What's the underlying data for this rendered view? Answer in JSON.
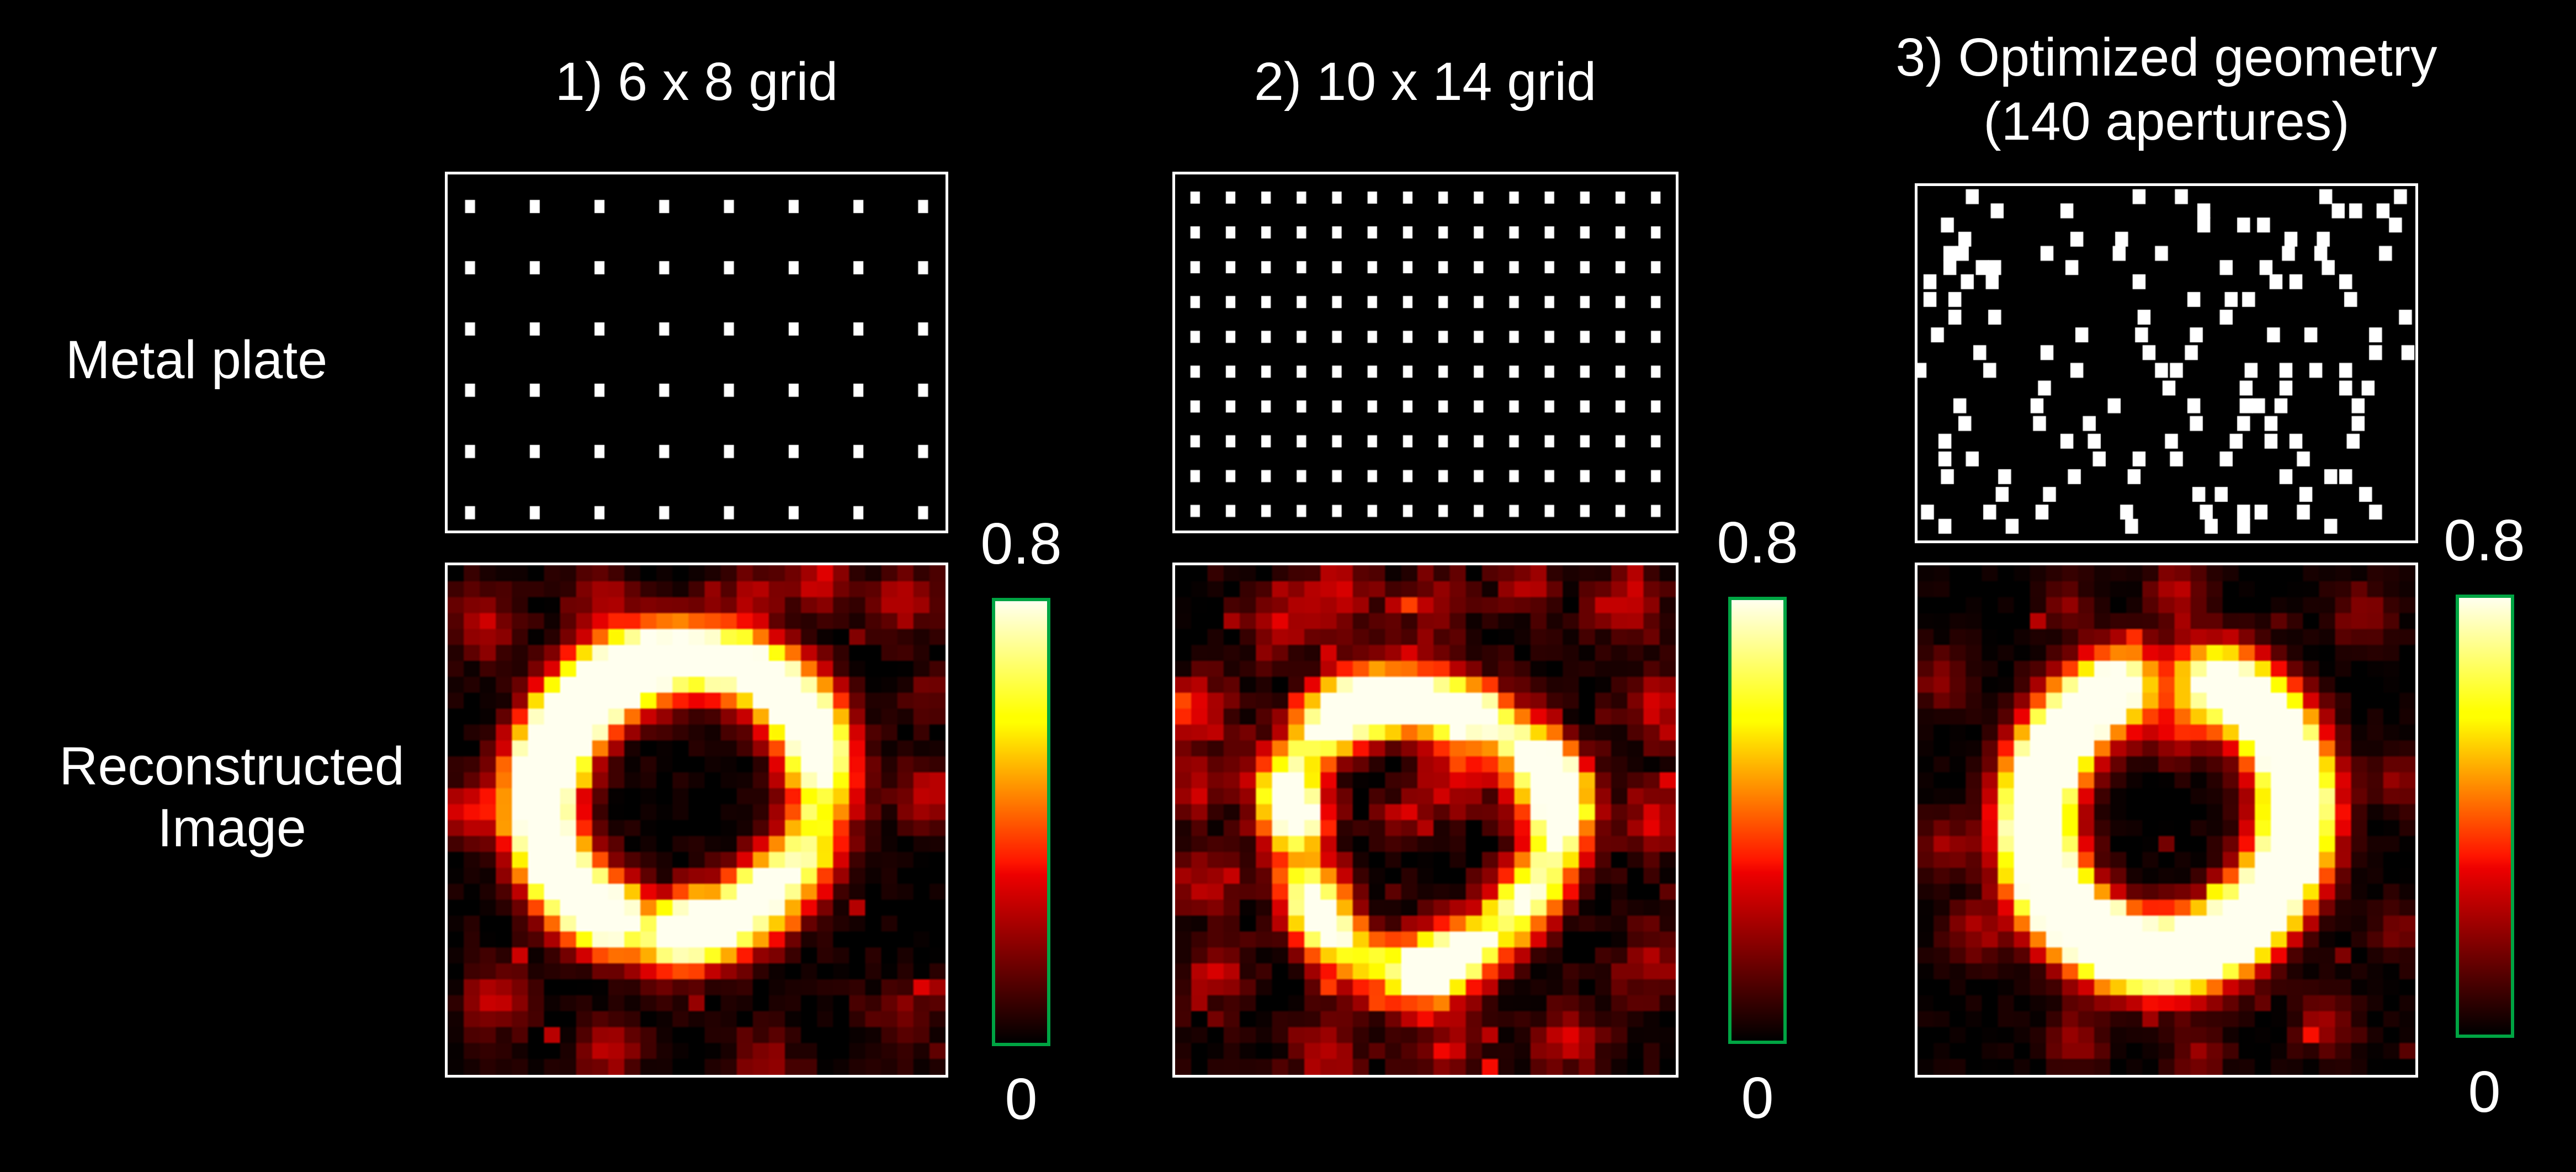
{
  "background": "#000000",
  "text_color": "#FFFFFF",
  "labels": {
    "metal_plate": "Metal plate",
    "reconstructed_line1": "Reconstructed",
    "reconstructed_line2": "Image"
  },
  "columns": [
    {
      "title_lines": [
        "1) 6 x 8 grid"
      ]
    },
    {
      "title_lines": [
        "2) 10 x 14 grid"
      ]
    },
    {
      "title_lines": [
        "3) Optimized geometry",
        "(140 apertures)"
      ]
    }
  ],
  "colorbar": {
    "max_label": "0.8",
    "min_label": "0",
    "range": [
      0,
      0.8
    ],
    "border_color": "#00A443",
    "colormap": "hot"
  },
  "chart_data": {
    "type": "heatmap",
    "value_range": [
      0,
      0.8
    ],
    "colormap": "hot",
    "panels": [
      {
        "name": "6 x 8 grid",
        "plate": {
          "kind": "grid",
          "rows": 6,
          "cols": 8,
          "x0": 0.045,
          "x1": 0.955,
          "y0": 0.09,
          "y1": 0.95,
          "hw": 0.02,
          "hh": 0.037
        },
        "recon": {
          "cx": 0.47,
          "cy": 0.45,
          "r0": 0.275,
          "sigma": 0.052,
          "amp": 1.5,
          "base": 1.0,
          "harm": [
            [
              1,
              0.18,
              2.8
            ],
            [
              3,
              0.15,
              0.9
            ]
          ],
          "notch": [
            [
              0.1,
              0.22,
              0.45
            ],
            [
              1.85,
              0.15,
              0.5
            ]
          ],
          "wobble": [
            0.012,
            2,
            1.0
          ],
          "noise": 0.11,
          "speckle": 0.035,
          "seed": 7,
          "blobs": [
            [
              0.07,
              0.12,
              0.05,
              0.3
            ],
            [
              0.3,
              0.06,
              0.05,
              0.25
            ],
            [
              0.62,
              0.05,
              0.04,
              0.22
            ],
            [
              0.92,
              0.07,
              0.05,
              0.28
            ],
            [
              0.04,
              0.48,
              0.04,
              0.35
            ],
            [
              0.96,
              0.45,
              0.045,
              0.33
            ],
            [
              0.1,
              0.85,
              0.05,
              0.3
            ],
            [
              0.33,
              0.95,
              0.05,
              0.28
            ],
            [
              0.63,
              0.97,
              0.045,
              0.25
            ],
            [
              0.92,
              0.88,
              0.05,
              0.22
            ],
            [
              0.97,
              0.25,
              0.04,
              0.2
            ],
            [
              0.75,
              0.03,
              0.04,
              0.33
            ],
            [
              0.62,
              0.62,
              0.035,
              0.3
            ]
          ]
        }
      },
      {
        "name": "10 x 14 grid",
        "plate": {
          "kind": "grid",
          "rows": 10,
          "cols": 14,
          "x0": 0.04,
          "x1": 0.96,
          "y0": 0.065,
          "y1": 0.945,
          "hw": 0.019,
          "hh": 0.034
        },
        "recon": {
          "cx": 0.49,
          "cy": 0.52,
          "r0": 0.262,
          "sigma": 0.047,
          "amp": 1.3,
          "base": 0.92,
          "harm": [
            [
              1,
              0.1,
              1.8
            ],
            [
              4,
              0.2,
              0.9
            ],
            [
              7,
              0.16,
              2.3
            ]
          ],
          "notch": [
            [
              2.95,
              0.18,
              0.5
            ]
          ],
          "wobble": [
            0.016,
            3,
            0.7
          ],
          "noise": 0.15,
          "speckle": 0.05,
          "seed": 19,
          "blobs": [
            [
              0.04,
              0.28,
              0.05,
              0.35
            ],
            [
              0.03,
              0.44,
              0.045,
              0.3
            ],
            [
              0.2,
              0.12,
              0.05,
              0.3
            ],
            [
              0.33,
              0.05,
              0.05,
              0.35
            ],
            [
              0.52,
              0.08,
              0.05,
              0.3
            ],
            [
              0.7,
              0.04,
              0.04,
              0.28
            ],
            [
              0.9,
              0.08,
              0.05,
              0.35
            ],
            [
              0.97,
              0.28,
              0.05,
              0.3
            ],
            [
              0.96,
              0.5,
              0.05,
              0.33
            ],
            [
              0.06,
              0.62,
              0.045,
              0.3
            ],
            [
              0.08,
              0.8,
              0.05,
              0.28
            ],
            [
              0.3,
              0.96,
              0.05,
              0.3
            ],
            [
              0.55,
              0.95,
              0.05,
              0.28
            ],
            [
              0.78,
              0.93,
              0.05,
              0.3
            ],
            [
              0.95,
              0.78,
              0.05,
              0.28
            ],
            [
              0.56,
              0.42,
              0.05,
              0.35
            ],
            [
              0.45,
              0.5,
              0.04,
              0.25
            ],
            [
              0.18,
              0.42,
              0.04,
              0.22
            ]
          ]
        }
      },
      {
        "name": "Optimized geometry (140 apertures)",
        "plate": {
          "kind": "list",
          "hw": 0.026,
          "hh": 0.042,
          "holes": [
            [
              0.11,
              0.03
            ],
            [
              0.445,
              0.03
            ],
            [
              0.53,
              0.03
            ],
            [
              0.82,
              0.03
            ],
            [
              0.97,
              0.03
            ],
            [
              0.16,
              0.07
            ],
            [
              0.3,
              0.07
            ],
            [
              0.575,
              0.07
            ],
            [
              0.845,
              0.07
            ],
            [
              0.88,
              0.07
            ],
            [
              0.935,
              0.07
            ],
            [
              0.06,
              0.11
            ],
            [
              0.575,
              0.11
            ],
            [
              0.655,
              0.11
            ],
            [
              0.695,
              0.11
            ],
            [
              0.96,
              0.11
            ],
            [
              0.095,
              0.15
            ],
            [
              0.32,
              0.15
            ],
            [
              0.41,
              0.15
            ],
            [
              0.75,
              0.15
            ],
            [
              0.815,
              0.15
            ],
            [
              0.065,
              0.19
            ],
            [
              0.09,
              0.19
            ],
            [
              0.26,
              0.19
            ],
            [
              0.405,
              0.19
            ],
            [
              0.49,
              0.19
            ],
            [
              0.745,
              0.19
            ],
            [
              0.81,
              0.19
            ],
            [
              0.94,
              0.19
            ],
            [
              0.065,
              0.23
            ],
            [
              0.13,
              0.23
            ],
            [
              0.155,
              0.23
            ],
            [
              0.31,
              0.23
            ],
            [
              0.62,
              0.23
            ],
            [
              0.7,
              0.23
            ],
            [
              0.825,
              0.23
            ],
            [
              0.025,
              0.27
            ],
            [
              0.1,
              0.27
            ],
            [
              0.15,
              0.27
            ],
            [
              0.445,
              0.27
            ],
            [
              0.72,
              0.27
            ],
            [
              0.76,
              0.27
            ],
            [
              0.86,
              0.27
            ],
            [
              0.025,
              0.32
            ],
            [
              0.075,
              0.32
            ],
            [
              0.555,
              0.32
            ],
            [
              0.63,
              0.32
            ],
            [
              0.665,
              0.32
            ],
            [
              0.87,
              0.32
            ],
            [
              0.075,
              0.37
            ],
            [
              0.155,
              0.37
            ],
            [
              0.455,
              0.37
            ],
            [
              0.62,
              0.37
            ],
            [
              0.98,
              0.37
            ],
            [
              0.04,
              0.42
            ],
            [
              0.33,
              0.42
            ],
            [
              0.45,
              0.42
            ],
            [
              0.56,
              0.42
            ],
            [
              0.715,
              0.42
            ],
            [
              0.79,
              0.42
            ],
            [
              0.92,
              0.42
            ],
            [
              0.125,
              0.47
            ],
            [
              0.26,
              0.47
            ],
            [
              0.465,
              0.47
            ],
            [
              0.55,
              0.47
            ],
            [
              0.92,
              0.47
            ],
            [
              0.985,
              0.47
            ],
            [
              0.005,
              0.52
            ],
            [
              0.145,
              0.52
            ],
            [
              0.32,
              0.52
            ],
            [
              0.49,
              0.52
            ],
            [
              0.52,
              0.52
            ],
            [
              0.67,
              0.52
            ],
            [
              0.74,
              0.52
            ],
            [
              0.8,
              0.52
            ],
            [
              0.86,
              0.52
            ],
            [
              0.255,
              0.57
            ],
            [
              0.505,
              0.57
            ],
            [
              0.66,
              0.57
            ],
            [
              0.74,
              0.57
            ],
            [
              0.86,
              0.57
            ],
            [
              0.905,
              0.57
            ],
            [
              0.085,
              0.62
            ],
            [
              0.24,
              0.62
            ],
            [
              0.395,
              0.62
            ],
            [
              0.555,
              0.62
            ],
            [
              0.66,
              0.62
            ],
            [
              0.685,
              0.62
            ],
            [
              0.73,
              0.62
            ],
            [
              0.885,
              0.62
            ],
            [
              0.095,
              0.67
            ],
            [
              0.245,
              0.67
            ],
            [
              0.345,
              0.67
            ],
            [
              0.56,
              0.67
            ],
            [
              0.655,
              0.67
            ],
            [
              0.71,
              0.67
            ],
            [
              0.885,
              0.67
            ],
            [
              0.055,
              0.72
            ],
            [
              0.3,
              0.72
            ],
            [
              0.355,
              0.72
            ],
            [
              0.51,
              0.72
            ],
            [
              0.64,
              0.72
            ],
            [
              0.71,
              0.72
            ],
            [
              0.76,
              0.72
            ],
            [
              0.875,
              0.72
            ],
            [
              0.055,
              0.77
            ],
            [
              0.11,
              0.77
            ],
            [
              0.365,
              0.77
            ],
            [
              0.445,
              0.77
            ],
            [
              0.52,
              0.77
            ],
            [
              0.62,
              0.77
            ],
            [
              0.775,
              0.77
            ],
            [
              0.06,
              0.82
            ],
            [
              0.175,
              0.82
            ],
            [
              0.315,
              0.82
            ],
            [
              0.435,
              0.82
            ],
            [
              0.74,
              0.82
            ],
            [
              0.83,
              0.82
            ],
            [
              0.86,
              0.82
            ],
            [
              0.17,
              0.87
            ],
            [
              0.265,
              0.87
            ],
            [
              0.565,
              0.87
            ],
            [
              0.61,
              0.87
            ],
            [
              0.78,
              0.87
            ],
            [
              0.9,
              0.87
            ],
            [
              0.02,
              0.92
            ],
            [
              0.145,
              0.92
            ],
            [
              0.25,
              0.92
            ],
            [
              0.42,
              0.92
            ],
            [
              0.58,
              0.92
            ],
            [
              0.655,
              0.92
            ],
            [
              0.69,
              0.92
            ],
            [
              0.775,
              0.92
            ],
            [
              0.92,
              0.92
            ],
            [
              0.055,
              0.96
            ],
            [
              0.19,
              0.96
            ],
            [
              0.43,
              0.96
            ],
            [
              0.59,
              0.96
            ],
            [
              0.655,
              0.96
            ],
            [
              0.83,
              0.96
            ]
          ]
        },
        "recon": {
          "cx": 0.5,
          "cy": 0.49,
          "r0": 0.268,
          "sigma": 0.053,
          "amp": 1.55,
          "base": 1.08,
          "harm": [
            [
              1,
              0.08,
              4.4
            ]
          ],
          "notch": [
            [
              -1.571,
              0.2,
              0.72
            ]
          ],
          "wobble": [
            0.01,
            2,
            2.2
          ],
          "noise": 0.08,
          "speckle": 0.02,
          "seed": 31,
          "blobs": [
            [
              0.05,
              0.22,
              0.04,
              0.25
            ],
            [
              0.9,
              0.1,
              0.045,
              0.25
            ],
            [
              0.97,
              0.43,
              0.04,
              0.22
            ],
            [
              0.05,
              0.55,
              0.04,
              0.25
            ],
            [
              0.12,
              0.72,
              0.045,
              0.25
            ],
            [
              0.32,
              0.93,
              0.045,
              0.22
            ],
            [
              0.57,
              0.96,
              0.04,
              0.22
            ],
            [
              0.82,
              0.9,
              0.045,
              0.25
            ],
            [
              0.96,
              0.72,
              0.04,
              0.2
            ],
            [
              0.52,
              0.05,
              0.04,
              0.3
            ],
            [
              0.52,
              0.32,
              0.05,
              0.32
            ],
            [
              0.3,
              0.08,
              0.04,
              0.2
            ]
          ]
        }
      }
    ]
  }
}
